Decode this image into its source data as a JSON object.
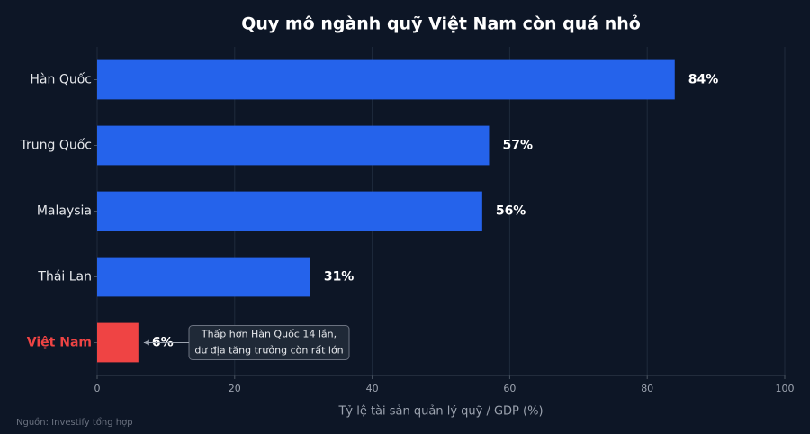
{
  "chart_data": {
    "type": "barh",
    "title": "Quy mô ngành quỹ Việt Nam còn quá nhỏ",
    "categories": [
      "Hàn Quốc",
      "Trung Quốc",
      "Malaysia",
      "Thái Lan",
      "Việt Nam"
    ],
    "values": [
      84,
      57,
      56,
      31,
      6
    ],
    "value_labels": [
      "84%",
      "57%",
      "56%",
      "31%",
      "6%"
    ],
    "colors": [
      "#2563eb",
      "#2563eb",
      "#2563eb",
      "#2563eb",
      "#ef4444"
    ],
    "label_colors": [
      "#e5e7eb",
      "#e5e7eb",
      "#e5e7eb",
      "#e5e7eb",
      "#ef4444"
    ],
    "xlim": [
      0,
      100
    ],
    "xticks": [
      0,
      20,
      40,
      60,
      80,
      100
    ],
    "grid": true,
    "xlabel": "Tỷ lệ tài sản quản lý quỹ / GDP (%)",
    "annotation": [
      "Thấp hơn Hàn Quốc 14 lần,",
      "dư địa tăng trưởng còn rất lớn"
    ],
    "source": "Nguồn: Investify tổng hợp"
  }
}
